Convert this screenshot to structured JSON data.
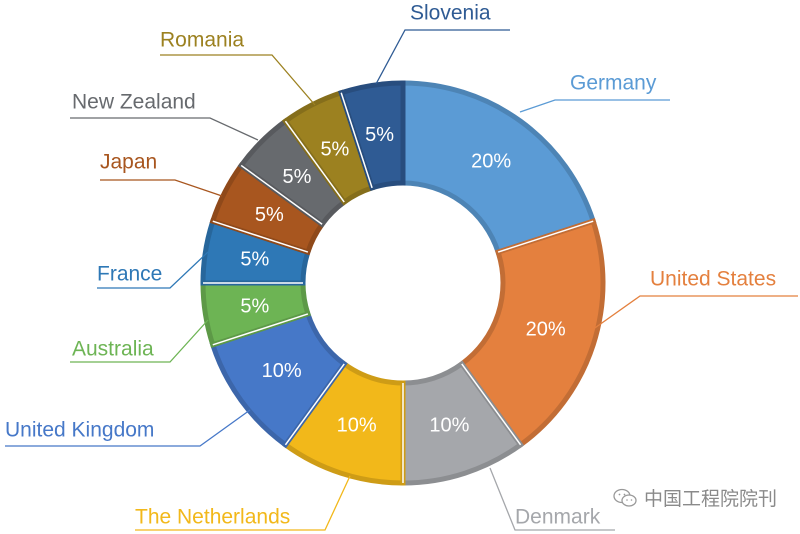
{
  "chart_data": {
    "type": "pie",
    "variant": "donut",
    "start": "12 o'clock, clockwise",
    "slices": [
      {
        "label": "Germany",
        "value": 20,
        "data_label": "20%",
        "color": "#5b9bd5"
      },
      {
        "label": "United States",
        "value": 20,
        "data_label": "20%",
        "color": "#e4803e"
      },
      {
        "label": "Denmark",
        "value": 10,
        "data_label": "10%",
        "color": "#a5a7ab"
      },
      {
        "label": "The Netherlands",
        "value": 10,
        "data_label": "10%",
        "color": "#f2b81a"
      },
      {
        "label": "United Kingdom",
        "value": 10,
        "data_label": "10%",
        "color": "#4678c8"
      },
      {
        "label": "Australia",
        "value": 5,
        "data_label": "5%",
        "color": "#6db454"
      },
      {
        "label": "France",
        "value": 5,
        "data_label": "5%",
        "color": "#2e78b6"
      },
      {
        "label": "Japan",
        "value": 5,
        "data_label": "5%",
        "color": "#a8561f"
      },
      {
        "label": "New Zealand",
        "value": 5,
        "data_label": "5%",
        "color": "#676a6e"
      },
      {
        "label": "Romania",
        "value": 5,
        "data_label": "5%",
        "color": "#9c8120"
      },
      {
        "label": "Slovenia",
        "value": 5,
        "data_label": "5%",
        "color": "#2f5b94"
      }
    ],
    "legend": "none (outside leader-line labels)"
  },
  "watermark": {
    "text": "中国工程院院刊",
    "icon": "wechat-icon"
  }
}
